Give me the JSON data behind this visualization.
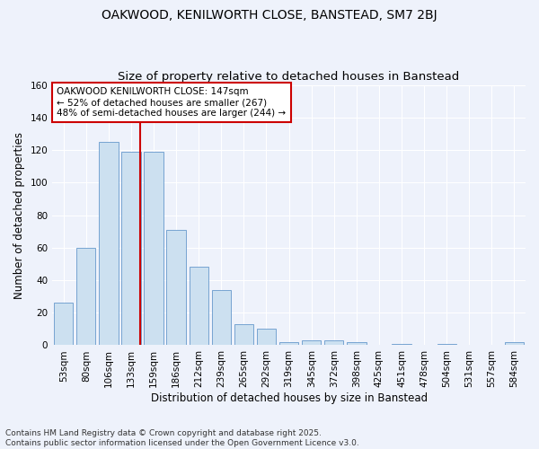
{
  "title1": "OAKWOOD, KENILWORTH CLOSE, BANSTEAD, SM7 2BJ",
  "title2": "Size of property relative to detached houses in Banstead",
  "xlabel": "Distribution of detached houses by size in Banstead",
  "ylabel": "Number of detached properties",
  "bar_labels": [
    "53sqm",
    "80sqm",
    "106sqm",
    "133sqm",
    "159sqm",
    "186sqm",
    "212sqm",
    "239sqm",
    "265sqm",
    "292sqm",
    "319sqm",
    "345sqm",
    "372sqm",
    "398sqm",
    "425sqm",
    "451sqm",
    "478sqm",
    "504sqm",
    "531sqm",
    "557sqm",
    "584sqm"
  ],
  "bar_values": [
    26,
    60,
    125,
    119,
    119,
    71,
    48,
    34,
    13,
    10,
    2,
    3,
    3,
    2,
    0,
    1,
    0,
    1,
    0,
    0,
    2
  ],
  "bar_color": "#cce0f0",
  "bar_edge_color": "#6699cc",
  "annotation_text": "OAKWOOD KENILWORTH CLOSE: 147sqm\n← 52% of detached houses are smaller (267)\n48% of semi-detached houses are larger (244) →",
  "annotation_box_color": "#ffffff",
  "annotation_box_edge": "#cc0000",
  "red_line_color": "#cc0000",
  "ylim": [
    0,
    160
  ],
  "yticks": [
    0,
    20,
    40,
    60,
    80,
    100,
    120,
    140,
    160
  ],
  "footer": "Contains HM Land Registry data © Crown copyright and database right 2025.\nContains public sector information licensed under the Open Government Licence v3.0.",
  "bg_color": "#eef2fb",
  "grid_color": "#ffffff",
  "title_fontsize": 10,
  "subtitle_fontsize": 9.5,
  "axis_label_fontsize": 8.5,
  "tick_fontsize": 7.5,
  "annotation_fontsize": 7.5,
  "footer_fontsize": 6.5
}
